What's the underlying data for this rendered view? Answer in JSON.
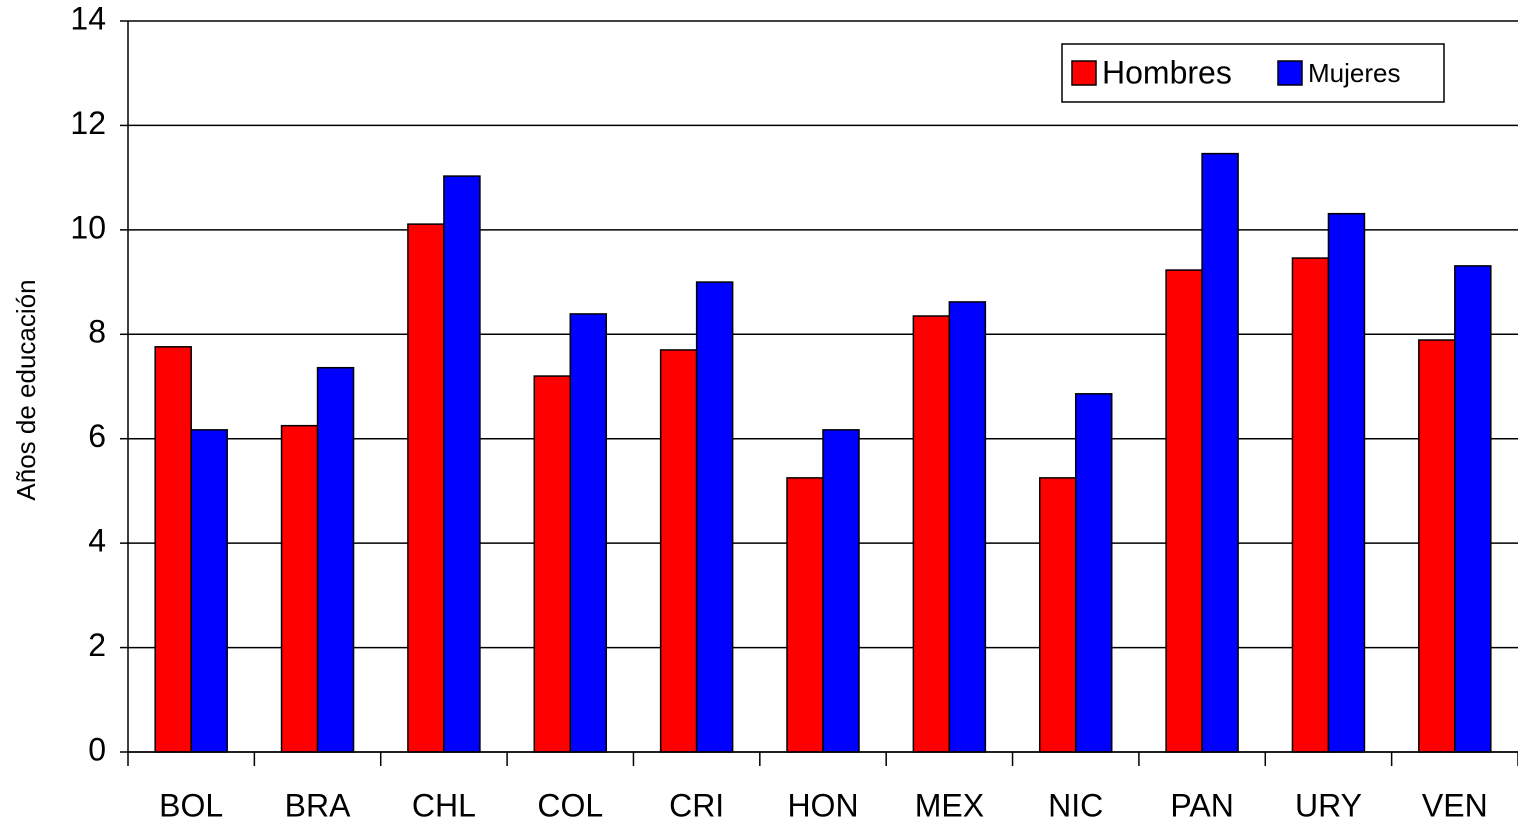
{
  "chart_data": {
    "type": "bar",
    "y_label": "Años de educación",
    "categories": [
      "BOL",
      "BRA",
      "CHL",
      "COL",
      "CRI",
      "HON",
      "MEX",
      "NIC",
      "PAN",
      "URY",
      "VEN"
    ],
    "series": [
      {
        "name": "Hombres",
        "color": "#ff0000",
        "values": [
          7.76,
          6.25,
          10.11,
          7.2,
          7.7,
          5.25,
          8.35,
          5.25,
          9.23,
          9.46,
          7.89
        ]
      },
      {
        "name": "Mujeres",
        "color": "#0000ff",
        "values": [
          6.17,
          7.36,
          11.03,
          8.39,
          9.0,
          6.17,
          8.62,
          6.86,
          11.46,
          10.31,
          9.31
        ]
      }
    ],
    "ylim": [
      0,
      14
    ],
    "yticks": [
      0,
      2,
      4,
      6,
      8,
      10,
      12,
      14
    ],
    "grid": true,
    "legend": "top-right"
  }
}
